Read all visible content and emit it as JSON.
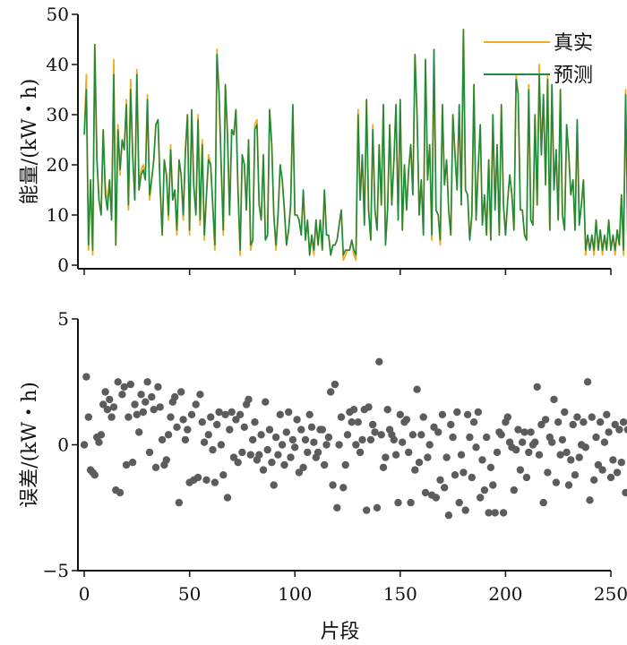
{
  "chart_data": [
    {
      "type": "line",
      "ylabel": "能量/(kW・h)",
      "ylim": [
        0,
        50
      ],
      "yticks": [
        0,
        10,
        20,
        30,
        40,
        50
      ],
      "xlim": [
        -3,
        250
      ],
      "grid": false,
      "legend_placement": "top-right",
      "colors": {
        "true": "#f0ad1f",
        "pred": "#1f8a3c"
      },
      "series": [
        {
          "name": "真实",
          "key": "true",
          "values": [
            26,
            38,
            3,
            17,
            2,
            44,
            21,
            13,
            10,
            27,
            16,
            12,
            17,
            9,
            41,
            4,
            28,
            18,
            25,
            23,
            33,
            11,
            37,
            22,
            13,
            39,
            15,
            19,
            20,
            18,
            34,
            13,
            17,
            21,
            28,
            29,
            16,
            6,
            21,
            18,
            9,
            24,
            13,
            15,
            6,
            21,
            18,
            9,
            23,
            30,
            6,
            31,
            16,
            10,
            30,
            8,
            25,
            5,
            14,
            22,
            20,
            12,
            3,
            43,
            34,
            20,
            6,
            36,
            26,
            10,
            27,
            26,
            31,
            15,
            2,
            22,
            20,
            11,
            25,
            3,
            5,
            28,
            29,
            12,
            9,
            22,
            5,
            6,
            31,
            24,
            10,
            3,
            10,
            20,
            17,
            11,
            4,
            7,
            12,
            32,
            10,
            10,
            9,
            6,
            15,
            5,
            9,
            2,
            6,
            2,
            9,
            4,
            9,
            3,
            15,
            6,
            6,
            2,
            4,
            4,
            5,
            8,
            11,
            1,
            2,
            3,
            3,
            5,
            2,
            1,
            31,
            13,
            22,
            8,
            33,
            11,
            5,
            28,
            11,
            7,
            24,
            12,
            32,
            4,
            11,
            28,
            12,
            21,
            32,
            9,
            33,
            7,
            20,
            11,
            19,
            24,
            14,
            42,
            30,
            10,
            17,
            6,
            41,
            17,
            24,
            5,
            43,
            11,
            10,
            4,
            32,
            16,
            21,
            11,
            6,
            30,
            22,
            15,
            32,
            12,
            47,
            15,
            14,
            5,
            10,
            36,
            9,
            19,
            28,
            8,
            14,
            6,
            21,
            5,
            30,
            11,
            24,
            6,
            32,
            12,
            6,
            13,
            18,
            14,
            7,
            38,
            34,
            11,
            11,
            6,
            5,
            36,
            9,
            8,
            30,
            12,
            40,
            22,
            34,
            16,
            38,
            7,
            36,
            15,
            23,
            9,
            35,
            10,
            7,
            28,
            22,
            14,
            17,
            7,
            29,
            8,
            12,
            17,
            2,
            6,
            3,
            6,
            2,
            9,
            3,
            7,
            2,
            6,
            3,
            9,
            3,
            6,
            2,
            7,
            4,
            14,
            2,
            35,
            6,
            2
          ]
        },
        {
          "name": "预测",
          "key": "pred",
          "values": [
            26,
            35,
            4,
            17,
            3,
            44,
            21,
            13,
            10,
            27,
            14,
            11,
            17,
            9,
            38,
            4,
            27,
            19,
            25,
            23,
            32,
            12,
            35,
            22,
            13,
            38,
            15,
            18,
            19,
            17,
            33,
            14,
            17,
            21,
            28,
            29,
            16,
            6,
            21,
            18,
            10,
            23,
            13,
            15,
            7,
            21,
            18,
            10,
            22,
            30,
            7,
            31,
            16,
            10,
            29,
            9,
            24,
            6,
            14,
            21,
            20,
            12,
            4,
            42,
            34,
            20,
            7,
            36,
            26,
            10,
            27,
            26,
            31,
            15,
            3,
            22,
            20,
            11,
            25,
            4,
            5,
            27,
            28,
            12,
            9,
            22,
            5,
            6,
            31,
            24,
            10,
            4,
            10,
            20,
            17,
            11,
            4,
            7,
            12,
            32,
            10,
            10,
            9,
            6,
            15,
            5,
            9,
            2,
            6,
            3,
            9,
            4,
            9,
            3,
            15,
            6,
            6,
            2,
            4,
            4,
            5,
            8,
            11,
            2,
            3,
            3,
            3,
            5,
            3,
            2,
            30,
            13,
            22,
            8,
            33,
            11,
            5,
            27,
            11,
            7,
            24,
            12,
            32,
            4,
            11,
            28,
            12,
            21,
            32,
            9,
            33,
            7,
            20,
            11,
            19,
            24,
            14,
            42,
            30,
            10,
            17,
            6,
            41,
            17,
            24,
            6,
            43,
            11,
            10,
            5,
            32,
            16,
            21,
            11,
            6,
            30,
            22,
            15,
            32,
            12,
            47,
            15,
            14,
            5,
            10,
            36,
            9,
            19,
            28,
            8,
            14,
            6,
            21,
            5,
            30,
            11,
            24,
            6,
            32,
            12,
            6,
            13,
            18,
            14,
            7,
            37,
            34,
            11,
            11,
            6,
            5,
            35,
            9,
            8,
            30,
            12,
            38,
            22,
            34,
            16,
            37,
            7,
            36,
            15,
            23,
            9,
            35,
            10,
            7,
            28,
            22,
            14,
            17,
            7,
            29,
            8,
            12,
            17,
            3,
            6,
            3,
            6,
            3,
            9,
            3,
            7,
            3,
            6,
            3,
            9,
            3,
            6,
            3,
            7,
            4,
            14,
            3,
            34,
            6,
            3
          ]
        }
      ]
    },
    {
      "type": "scatter",
      "xlabel": "片段",
      "ylabel": "误差/(kW・h)",
      "ylim": [
        -5,
        5
      ],
      "yticks": [
        -5,
        0,
        5
      ],
      "ytick_labels": [
        "−5",
        "0",
        "5"
      ],
      "xlim": [
        -3,
        250
      ],
      "xticks": [
        0,
        50,
        100,
        150,
        200,
        250
      ],
      "grid": false,
      "color": "#5c5c5c",
      "series": [
        {
          "values": [
            0.0,
            2.7,
            1.1,
            -1.0,
            -1.1,
            -1.2,
            0.3,
            0.1,
            0.4,
            1.6,
            2.1,
            1.4,
            1.8,
            1.1,
            1.5,
            -1.8,
            2.5,
            -1.9,
            2.0,
            2.3,
            -0.8,
            1.1,
            2.4,
            -0.7,
            1.6,
            1.2,
            0.5,
            2.0,
            1.3,
            1.7,
            2.5,
            -0.3,
            1.9,
            1.4,
            -0.9,
            2.3,
            1.5,
            0.2,
            -0.8,
            -0.6,
            0.4,
            1.1,
            1.7,
            1.9,
            0.7,
            -2.3,
            2.1,
            1.0,
            0.2,
            0.6,
            -1.5,
            1.2,
            -1.4,
            1.6,
            -1.3,
            2.0,
            0.9,
            0.1,
            -1.4,
            0.4,
            1.1,
            -0.2,
            -1.5,
            0.8,
            1.3,
            0.0,
            -1.2,
            1.2,
            -2.1,
            0.6,
            1.3,
            -0.5,
            1.0,
            -0.7,
            1.2,
            -0.3,
            0.7,
            1.6,
            1.8,
            -0.4,
            0.2,
            0.9,
            -0.6,
            -0.4,
            0.4,
            -1.0,
            1.7,
            -0.2,
            0.6,
            -0.7,
            -1.6,
            0.3,
            -0.4,
            1.2,
            0.0,
            -0.8,
            0.5,
            1.3,
            -0.5,
            0.2,
            -0.1,
            1.0,
            -1.1,
            0.6,
            -0.9,
            0.2,
            -0.3,
            1.2,
            0.7,
            0.1,
            -0.5,
            -0.3,
            0.6,
            0.6,
            -0.8,
            0.0,
            0.3,
            2.1,
            -1.6,
            2.4,
            -2.5,
            0.0,
            1.1,
            -1.7,
            -0.8,
            0.4,
            1.3,
            0.9,
            1.4,
            0.0,
            0.9,
            -0.3,
            0.2,
            1.4,
            -2.6,
            1.5,
            0.2,
            0.8,
            0.5,
            -2.5,
            3.3,
            0.4,
            -0.9,
            -0.5,
            1.4,
            0.6,
            0.4,
            0.2,
            -0.4,
            -2.3,
            1.2,
            0.1,
            0.9,
            1.0,
            -0.3,
            -2.3,
            0.4,
            -1.0,
            2.2,
            -0.7,
            0.4,
            1.1,
            -1.9,
            -0.5,
            0.0,
            -2.0,
            0.7,
            -2.1,
            0.5,
            -1.4,
            1.2,
            -1.7,
            -0.5,
            -2.8,
            0.8,
            0.3,
            -1.2,
            1.3,
            -2.3,
            -0.4,
            -1.1,
            -2.6,
            1.2,
            0.3,
            -1.3,
            0.9,
            -0.1,
            1.3,
            -2.1,
            -0.6,
            -1.8,
            0.3,
            -2.7,
            -0.9,
            -1.6,
            -2.7,
            -0.3,
            0.5,
            0.4,
            -2.7,
            0.9,
            1.1,
            0.1,
            -0.1,
            -1.8,
            -0.2,
            0.6,
            -1.0,
            0.1,
            0.5,
            -1.3,
            -0.3,
            0.5,
            0.0,
            0.1,
            2.3,
            -0.4,
            0.8,
            -2.3,
            1.0,
            -1.1,
            0.3,
            0.1,
            1.8,
            -1.5,
            0.9,
            -0.4,
            0.2,
            1.3,
            -0.3,
            -1.6,
            -0.6,
            0.8,
            -1.2,
            1.1,
            -0.5,
            0.0,
            0.9,
            -0.1,
            2.5,
            -2.2,
            1.1,
            -1.4,
            0.3,
            -0.8,
            0.9,
            -1.0,
            0.1,
            1.2,
            0.5,
            -1.3,
            -0.6,
            0.8,
            -1.1,
            0.6,
            -0.7,
            0.9,
            -1.9,
            0.6
          ]
        }
      ]
    }
  ]
}
